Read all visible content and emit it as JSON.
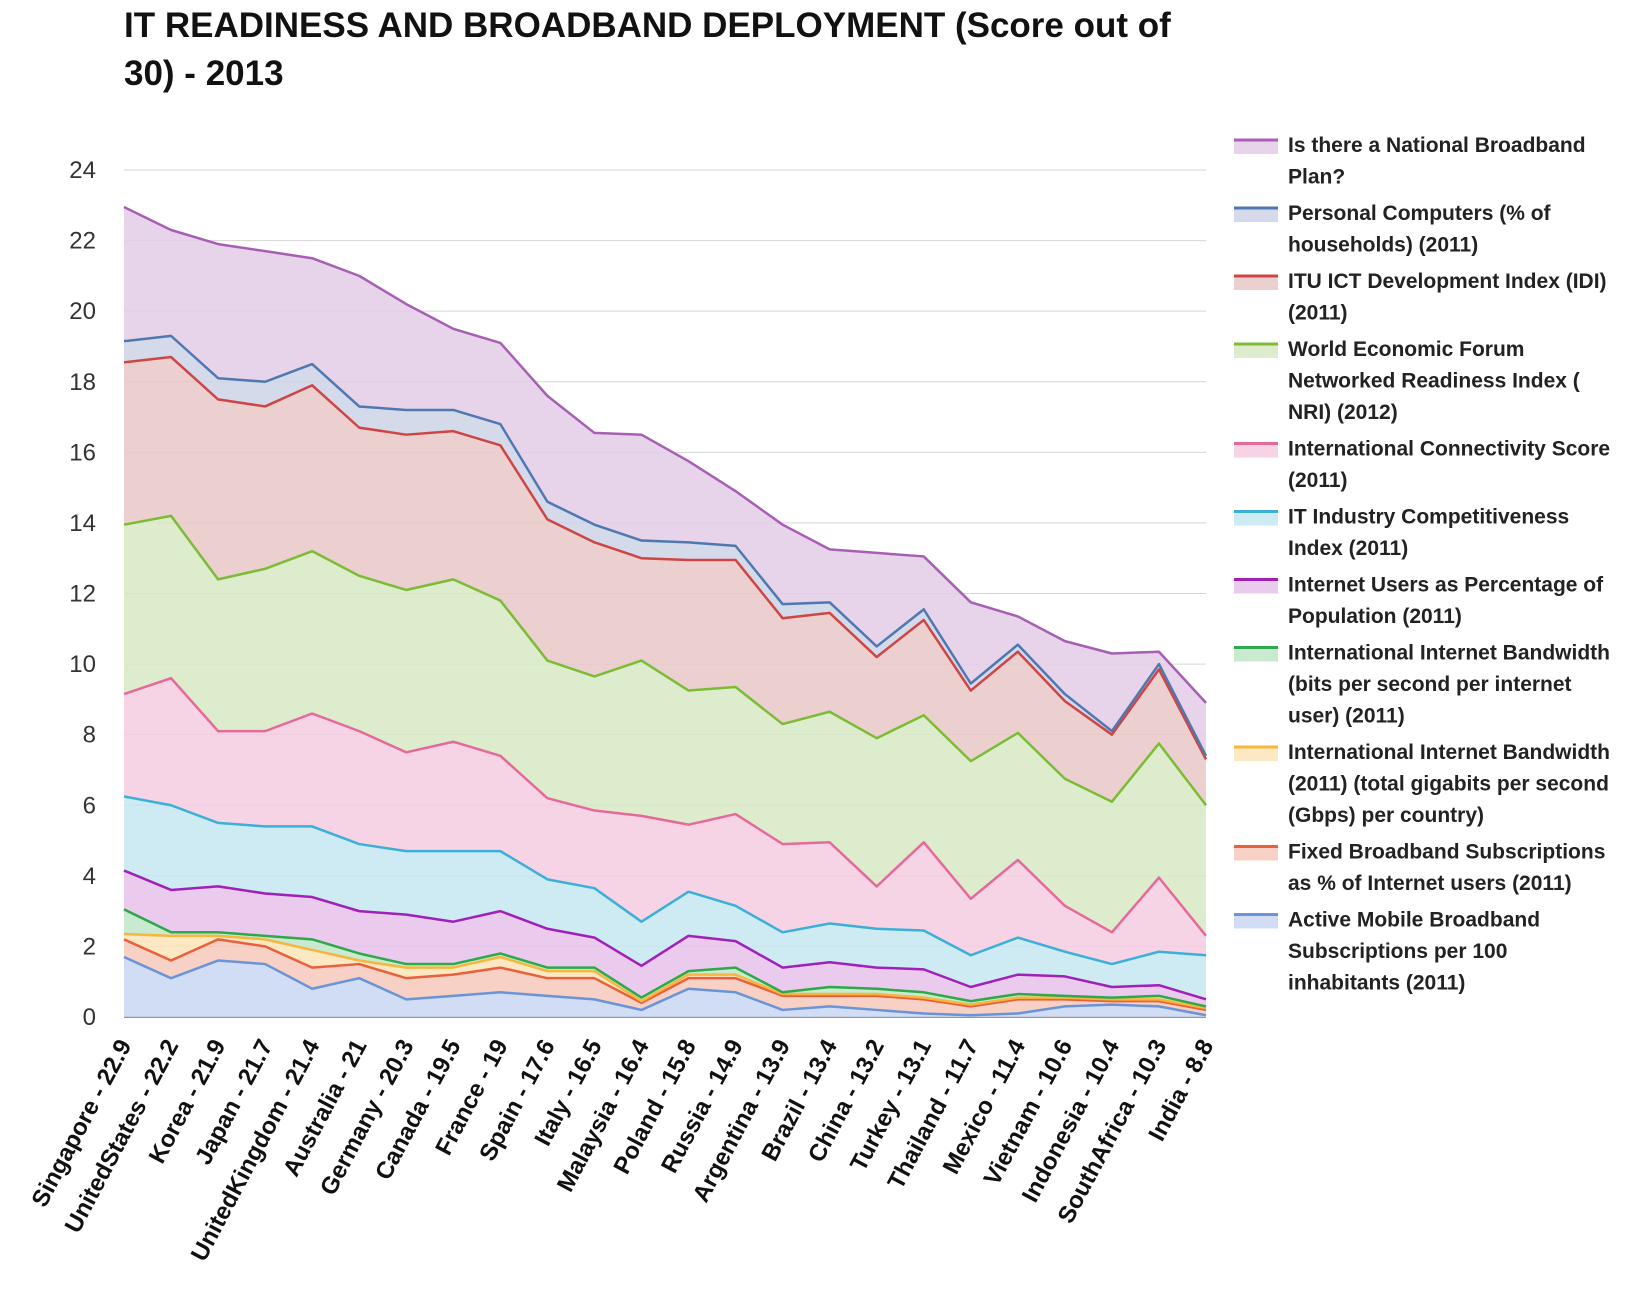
{
  "chart_data": {
    "type": "area",
    "stacked": true,
    "title": "IT READINESS AND BROADBAND DEPLOYMENT (Score out of 30) - 2013",
    "xlabel": "",
    "ylabel": "",
    "ylim": [
      0,
      24
    ],
    "yticks": [
      0,
      2,
      4,
      6,
      8,
      10,
      12,
      14,
      16,
      18,
      20,
      22,
      24
    ],
    "grid": true,
    "legend_position": "right",
    "categories": [
      "Singapore - 22.9",
      "UnitedStates - 22.2",
      "Korea - 21.9",
      "Japan - 21.7",
      "UnitedKingdom - 21.4",
      "Australia - 21",
      "Germany - 20.3",
      "Canada - 19.5",
      "France - 19",
      "Spain - 17.6",
      "Italy - 16.5",
      "Malaysia - 16.4",
      "Poland - 15.8",
      "Russia - 14.9",
      "Argentina - 13.9",
      "Brazil - 13.4",
      "China - 13.2",
      "Turkey - 13.1",
      "Thailand - 11.7",
      "Mexico - 11.4",
      "Vietnam - 10.6",
      "Indonesia - 10.4",
      "SouthAfrica - 10.3",
      "India - 8.8"
    ],
    "series": [
      {
        "name": "Active Mobile Broadband Subscriptions per 100 inhabitants (2011)",
        "line_color": "#6b93d8",
        "fill_color": "#c9d7f2",
        "values": [
          1.7,
          1.1,
          1.6,
          1.5,
          0.8,
          1.1,
          0.5,
          0.6,
          0.7,
          0.6,
          0.5,
          0.2,
          0.8,
          0.7,
          0.2,
          0.3,
          0.2,
          0.1,
          0.05,
          0.1,
          0.3,
          0.35,
          0.3,
          0.05
        ]
      },
      {
        "name": "Fixed Broadband Subscriptions as % of Internet users (2011)",
        "line_color": "#e8603c",
        "fill_color": "#f6c9bb",
        "values": [
          0.5,
          0.5,
          0.6,
          0.5,
          0.6,
          0.4,
          0.6,
          0.6,
          0.7,
          0.5,
          0.6,
          0.2,
          0.3,
          0.4,
          0.4,
          0.3,
          0.4,
          0.4,
          0.25,
          0.4,
          0.2,
          0.1,
          0.15,
          0.15
        ]
      },
      {
        "name": "International Internet Bandwidth (2011) (total gigabits per second (Gbps) per country)",
        "line_color": "#f7b63e",
        "fill_color": "#fce4b9",
        "values": [
          0.15,
          0.7,
          0.1,
          0.2,
          0.5,
          0.1,
          0.3,
          0.2,
          0.3,
          0.2,
          0.2,
          0.05,
          0.1,
          0.1,
          0.05,
          0.05,
          0.05,
          0.05,
          0.05,
          0.05,
          0.05,
          0.05,
          0.05,
          0.05
        ]
      },
      {
        "name": "International Internet Bandwidth (bits per second per internet user) (2011)",
        "line_color": "#2ea84a",
        "fill_color": "#bfe6c5",
        "values": [
          0.7,
          0.1,
          0.1,
          0.1,
          0.3,
          0.2,
          0.1,
          0.1,
          0.1,
          0.1,
          0.1,
          0.1,
          0.1,
          0.2,
          0.05,
          0.2,
          0.15,
          0.15,
          0.1,
          0.1,
          0.05,
          0.05,
          0.1,
          0.05
        ]
      },
      {
        "name": "Internet Users as Percentage of Population (2011)",
        "line_color": "#a020b8",
        "fill_color": "#e6c2ea",
        "values": [
          1.1,
          1.2,
          1.3,
          1.2,
          1.2,
          1.2,
          1.4,
          1.2,
          1.2,
          1.1,
          0.85,
          0.9,
          1.0,
          0.75,
          0.7,
          0.7,
          0.6,
          0.65,
          0.4,
          0.55,
          0.55,
          0.3,
          0.3,
          0.2
        ]
      },
      {
        "name": "IT Industry Competitiveness Index (2011)",
        "line_color": "#3ab0d8",
        "fill_color": "#c5e6f0",
        "values": [
          2.1,
          2.4,
          1.8,
          1.9,
          2.0,
          1.9,
          1.8,
          2.0,
          1.7,
          1.4,
          1.4,
          1.25,
          1.25,
          1.0,
          1.0,
          1.1,
          1.1,
          1.1,
          0.9,
          1.05,
          0.7,
          0.65,
          0.95,
          1.25
        ]
      },
      {
        "name": "International Connectivity Score (2011)",
        "line_color": "#e6699a",
        "fill_color": "#f5cde0",
        "values": [
          2.9,
          3.6,
          2.6,
          2.7,
          3.2,
          3.2,
          2.8,
          3.1,
          2.7,
          2.3,
          2.2,
          3.0,
          1.9,
          2.6,
          2.5,
          2.3,
          1.2,
          2.5,
          1.6,
          2.2,
          1.3,
          0.9,
          2.1,
          0.55
        ]
      },
      {
        "name": "World Economic Forum Networked Readiness Index ( NRI) (2012)",
        "line_color": "#7cbc35",
        "fill_color": "#d8e9c6",
        "values": [
          4.8,
          4.6,
          4.3,
          4.6,
          4.6,
          4.4,
          4.6,
          4.6,
          4.4,
          3.9,
          3.8,
          4.4,
          3.8,
          3.6,
          3.4,
          3.7,
          4.2,
          3.6,
          3.9,
          3.6,
          3.6,
          3.7,
          3.8,
          3.7
        ]
      },
      {
        "name": "ITU ICT Development Index (IDI) (2011)",
        "line_color": "#cf4545",
        "fill_color": "#e9c8c8",
        "values": [
          4.6,
          4.5,
          5.1,
          4.6,
          4.7,
          4.2,
          4.4,
          4.2,
          4.4,
          4.0,
          3.8,
          2.9,
          3.7,
          3.6,
          3.0,
          2.8,
          2.3,
          2.7,
          2.0,
          2.3,
          2.2,
          1.9,
          2.1,
          1.3
        ]
      },
      {
        "name": "Personal Computers (% of households) (2011)",
        "line_color": "#4f78b0",
        "fill_color": "#cdd3e6",
        "values": [
          0.6,
          0.6,
          0.6,
          0.7,
          0.6,
          0.6,
          0.7,
          0.6,
          0.6,
          0.5,
          0.5,
          0.5,
          0.5,
          0.4,
          0.4,
          0.3,
          0.3,
          0.3,
          0.2,
          0.2,
          0.2,
          0.1,
          0.15,
          0.1
        ]
      },
      {
        "name": "Is there a National Broadband Plan?",
        "line_color": "#a75fb3",
        "fill_color": "#e3cde7",
        "values": [
          3.8,
          3.0,
          3.8,
          3.7,
          3.0,
          3.7,
          3.0,
          2.3,
          2.3,
          3.0,
          2.6,
          3.0,
          2.3,
          1.55,
          2.25,
          1.5,
          2.65,
          1.5,
          2.3,
          0.8,
          1.5,
          2.2,
          0.35,
          1.5
        ]
      }
    ],
    "legend_order": [
      {
        "lines": [
          "Is there a National Broadband",
          "Plan?"
        ]
      },
      {
        "lines": [
          "Personal Computers (% of",
          "households) (2011)"
        ]
      },
      {
        "lines": [
          "ITU ICT Development Index (IDI)",
          "(2011)"
        ]
      },
      {
        "lines": [
          "World Economic Forum",
          "Networked Readiness Index (",
          "NRI) (2012)"
        ]
      },
      {
        "lines": [
          "International Connectivity Score",
          "(2011)"
        ]
      },
      {
        "lines": [
          "IT Industry Competitiveness",
          "Index (2011)"
        ]
      },
      {
        "lines": [
          "Internet Users as Percentage of",
          "Population (2011)"
        ]
      },
      {
        "lines": [
          "International Internet Bandwidth",
          "(bits per second per internet",
          "user) (2011)"
        ]
      },
      {
        "lines": [
          "International Internet Bandwidth",
          "(2011) (total gigabits per second",
          "(Gbps) per country)"
        ]
      },
      {
        "lines": [
          "Fixed Broadband Subscriptions",
          "as % of Internet users (2011)"
        ]
      },
      {
        "lines": [
          "Active Mobile Broadband",
          "Subscriptions per 100",
          "inhabitants (2011)"
        ]
      }
    ]
  }
}
